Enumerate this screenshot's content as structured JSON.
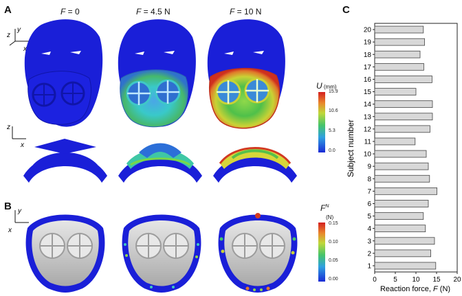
{
  "panels": {
    "a_label": "A",
    "b_label": "B",
    "c_label": "C"
  },
  "force_columns": [
    {
      "prefix": "F",
      "value": " = 0"
    },
    {
      "prefix": "F",
      "value": " = 4.5 N"
    },
    {
      "prefix": "F",
      "value": " = 10 N"
    }
  ],
  "axes_glyphs": {
    "top": {
      "z": "z",
      "y": "y",
      "x": "x"
    },
    "mid": {
      "z": "z",
      "x": "x"
    },
    "bottom": {
      "y": "y",
      "x": "x"
    }
  },
  "colorbar_u": {
    "symbol": "U",
    "unit": " (mm)",
    "ticks": [
      "15.9",
      "10.6",
      "5.3",
      "0.0"
    ]
  },
  "colorbar_f": {
    "symbol": "F",
    "superscript": "N",
    "unit": "(N)",
    "ticks": [
      "0.15",
      "0.10",
      "0.05",
      "0.00"
    ]
  },
  "colors": {
    "mesh_blue": "#1a1fd8",
    "frame_gray": "#c8c8c8",
    "bar_fill": "#d8d8d8",
    "bar_stroke": "#444444"
  },
  "chart_data": {
    "type": "bar",
    "orientation": "horizontal",
    "categories": [
      "1",
      "2",
      "3",
      "4",
      "5",
      "6",
      "7",
      "8",
      "9",
      "10",
      "11",
      "12",
      "13",
      "14",
      "15",
      "16",
      "17",
      "18",
      "19",
      "20"
    ],
    "values": [
      14.8,
      13.6,
      14.5,
      12.3,
      11.8,
      13.0,
      15.1,
      13.3,
      13.0,
      12.5,
      9.8,
      13.4,
      14.0,
      14.0,
      10.0,
      13.9,
      11.9,
      11.0,
      12.1,
      11.8
    ],
    "xlabel_prefix": "Reaction force, ",
    "xlabel_symbol": "F",
    "xlabel_unit": " (N)",
    "ylabel": "Subject number",
    "xticks": [
      "0",
      "5",
      "10",
      "15",
      "20"
    ],
    "xlim": [
      0,
      20
    ]
  }
}
